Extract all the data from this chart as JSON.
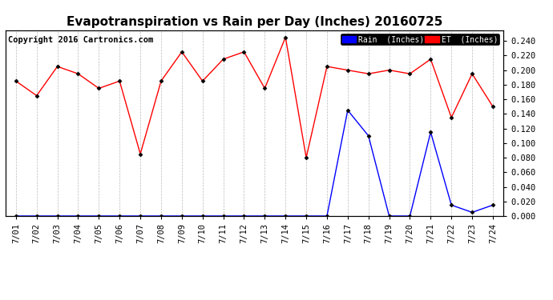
{
  "title": "Evapotranspiration vs Rain per Day (Inches) 20160725",
  "copyright": "Copyright 2016 Cartronics.com",
  "dates": [
    "7/01",
    "7/02",
    "7/03",
    "7/04",
    "7/05",
    "7/06",
    "7/07",
    "7/08",
    "7/09",
    "7/10",
    "7/11",
    "7/12",
    "7/13",
    "7/14",
    "7/15",
    "7/16",
    "7/17",
    "7/18",
    "7/19",
    "7/20",
    "7/21",
    "7/22",
    "7/23",
    "7/24"
  ],
  "et_values": [
    0.185,
    0.165,
    0.205,
    0.195,
    0.175,
    0.185,
    0.085,
    0.185,
    0.225,
    0.185,
    0.215,
    0.225,
    0.175,
    0.245,
    0.08,
    0.205,
    0.2,
    0.195,
    0.2,
    0.195,
    0.215,
    0.135,
    0.195,
    0.15
  ],
  "rain_values": [
    0.0,
    0.0,
    0.0,
    0.0,
    0.0,
    0.0,
    0.0,
    0.0,
    0.0,
    0.0,
    0.0,
    0.0,
    0.0,
    0.0,
    0.0,
    0.0,
    0.145,
    0.11,
    0.0,
    0.0,
    0.115,
    0.015,
    0.005,
    0.015
  ],
  "et_color": "red",
  "rain_color": "blue",
  "ylim": [
    0.0,
    0.255
  ],
  "yticks": [
    0.0,
    0.02,
    0.04,
    0.06,
    0.08,
    0.1,
    0.12,
    0.14,
    0.16,
    0.18,
    0.2,
    0.22,
    0.24
  ],
  "legend_rain_bg": "#0000ff",
  "legend_et_bg": "#ff0000",
  "legend_rain_label": "Rain  (Inches)",
  "legend_et_label": "ET  (Inches)",
  "background_color": "white",
  "grid_color": "#bbbbbb",
  "title_fontsize": 11,
  "tick_fontsize": 7.5,
  "copyright_fontsize": 7.5
}
